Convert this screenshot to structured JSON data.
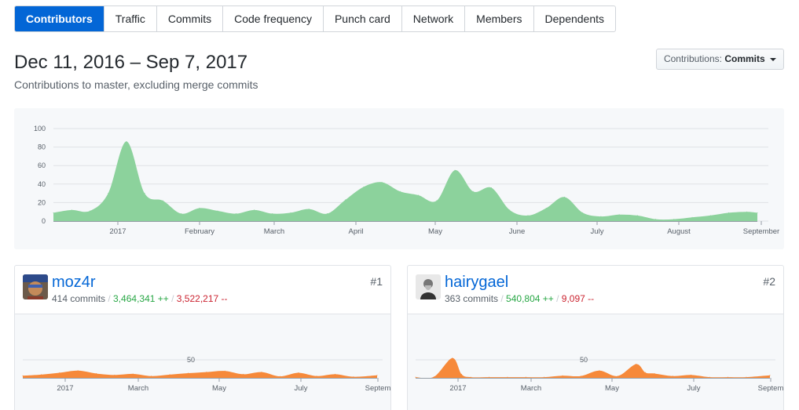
{
  "tabs": [
    {
      "label": "Contributors",
      "active": true
    },
    {
      "label": "Traffic",
      "active": false
    },
    {
      "label": "Commits",
      "active": false
    },
    {
      "label": "Code frequency",
      "active": false
    },
    {
      "label": "Punch card",
      "active": false
    },
    {
      "label": "Network",
      "active": false
    },
    {
      "label": "Members",
      "active": false
    },
    {
      "label": "Dependents",
      "active": false
    }
  ],
  "header": {
    "range": "Dec 11, 2016 – Sep 7, 2017",
    "subtitle": "Contributions to master, excluding merge commits"
  },
  "dropdown": {
    "label": "Contributions:",
    "value": "Commits"
  },
  "colors": {
    "primary": "#0366d6",
    "area_main": "#8cd29c",
    "area_contrib": "#f6893a",
    "add": "#28a745",
    "del": "#cb2431"
  },
  "chart_data": [
    {
      "type": "area",
      "yticks": [
        0,
        20,
        40,
        60,
        80,
        100
      ],
      "ylim": [
        0,
        100
      ],
      "xlabels": [
        "2017",
        "February",
        "March",
        "April",
        "May",
        "June",
        "July",
        "August",
        "September"
      ],
      "xlim": [
        "2016-12-11",
        "2017-09-07"
      ],
      "x": [
        "2016-12-11",
        "2016-12-18",
        "2016-12-25",
        "2017-01-01",
        "2017-01-08",
        "2017-01-15",
        "2017-01-22",
        "2017-01-29",
        "2017-02-05",
        "2017-02-12",
        "2017-02-19",
        "2017-02-26",
        "2017-03-05",
        "2017-03-12",
        "2017-03-19",
        "2017-03-26",
        "2017-04-02",
        "2017-04-09",
        "2017-04-16",
        "2017-04-23",
        "2017-04-30",
        "2017-05-07",
        "2017-05-14",
        "2017-05-21",
        "2017-05-28",
        "2017-06-04",
        "2017-06-11",
        "2017-06-18",
        "2017-06-25",
        "2017-07-02",
        "2017-07-09",
        "2017-07-16",
        "2017-07-23",
        "2017-07-30",
        "2017-08-06",
        "2017-08-13",
        "2017-08-20",
        "2017-08-27",
        "2017-09-03",
        "2017-09-07"
      ],
      "values": [
        9,
        12,
        11,
        30,
        86,
        30,
        22,
        8,
        14,
        11,
        8,
        12,
        8,
        9,
        13,
        8,
        23,
        37,
        42,
        32,
        28,
        22,
        55,
        32,
        36,
        12,
        6,
        14,
        26,
        9,
        5,
        7,
        6,
        2,
        2,
        4,
        6,
        9,
        10,
        9
      ]
    },
    {
      "type": "area",
      "name": "moz4r",
      "yticks": [
        50
      ],
      "xlabels": [
        "2017",
        "March",
        "May",
        "July",
        "Septem"
      ],
      "xlim": [
        "2016-12-11",
        "2017-09-07"
      ],
      "x": [
        "2016-12-11",
        "2016-12-25",
        "2017-01-08",
        "2017-01-22",
        "2017-02-05",
        "2017-02-19",
        "2017-03-05",
        "2017-03-19",
        "2017-04-02",
        "2017-04-16",
        "2017-04-30",
        "2017-05-14",
        "2017-05-28",
        "2017-06-11",
        "2017-06-25",
        "2017-07-09",
        "2017-07-23",
        "2017-08-06",
        "2017-08-20",
        "2017-09-07"
      ],
      "values": [
        6,
        9,
        14,
        20,
        12,
        8,
        11,
        5,
        9,
        13,
        16,
        19,
        10,
        16,
        4,
        14,
        5,
        10,
        3,
        7
      ]
    },
    {
      "type": "area",
      "name": "hairygael",
      "yticks": [
        50
      ],
      "xlabels": [
        "2017",
        "March",
        "May",
        "July",
        "Septem"
      ],
      "xlim": [
        "2016-12-11",
        "2017-09-07"
      ],
      "x": [
        "2016-12-11",
        "2016-12-25",
        "2017-01-08",
        "2017-01-15",
        "2017-01-22",
        "2017-02-05",
        "2017-02-19",
        "2017-03-05",
        "2017-03-19",
        "2017-04-02",
        "2017-04-16",
        "2017-04-30",
        "2017-05-14",
        "2017-05-28",
        "2017-06-04",
        "2017-06-11",
        "2017-06-25",
        "2017-07-09",
        "2017-07-23",
        "2017-08-06",
        "2017-08-20",
        "2017-09-07"
      ],
      "values": [
        2,
        3,
        55,
        10,
        2,
        2,
        2,
        2,
        2,
        6,
        5,
        20,
        5,
        38,
        15,
        12,
        5,
        8,
        2,
        2,
        2,
        7
      ]
    }
  ],
  "contributors": [
    {
      "name": "moz4r",
      "commits": "414 commits",
      "additions": "3,464,341 ++",
      "deletions": "3,522,217 --",
      "rank": "#1"
    },
    {
      "name": "hairygael",
      "commits": "363 commits",
      "additions": "540,804 ++",
      "deletions": "9,097 --",
      "rank": "#2"
    }
  ]
}
